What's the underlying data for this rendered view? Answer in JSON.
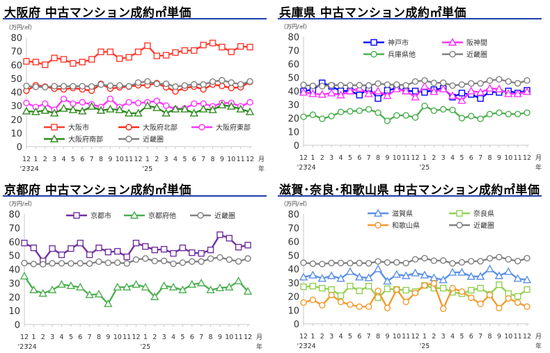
{
  "x_labels": [
    "12",
    "1",
    "2",
    "3",
    "4",
    "5",
    "6",
    "7",
    "8",
    "9",
    "10",
    "11",
    "12",
    "1",
    "2",
    "3",
    "4",
    "5",
    "6",
    "7",
    "8",
    "9",
    "10",
    "11",
    "12"
  ],
  "x_year_labels": {
    "0": "'23",
    "1": "'24",
    "13": "'25"
  },
  "x_unit_label": "月",
  "x_unit_label2": "年",
  "chart_data": [
    {
      "type": "line",
      "title": "大阪府 中古マンション成約㎡単価",
      "ylabel": "（万円/㎡）",
      "ylim": [
        0,
        80
      ],
      "yticks": [
        0,
        10,
        20,
        30,
        40,
        50,
        60,
        70,
        80
      ],
      "legend": "bottom",
      "series": [
        {
          "name": "大阪市",
          "color": "#ff3b2f",
          "marker": "square",
          "values": [
            62.5,
            62,
            60,
            65,
            64,
            61,
            62,
            64,
            69.5,
            69.5,
            64.5,
            65.5,
            69.5,
            74,
            66.5,
            67,
            69,
            70.5,
            70.5,
            74.5,
            76,
            73,
            69.5,
            73.5,
            73
          ]
        },
        {
          "name": "大阪府北部",
          "color": "#ff2a1a",
          "marker": "circle",
          "values": [
            41,
            45,
            44,
            42.5,
            42,
            43,
            42,
            41,
            46,
            42.5,
            43.5,
            44,
            45,
            45,
            46.5,
            43.5,
            40.5,
            43,
            44,
            42,
            45.5,
            44.5,
            43,
            43.5,
            47.5
          ]
        },
        {
          "name": "大阪府東部",
          "color": "#ff33ff",
          "marker": "circle",
          "values": [
            32,
            29,
            31.5,
            27,
            35,
            31.5,
            32.5,
            31,
            29,
            35,
            29,
            32.5,
            32,
            32.5,
            33.5,
            30,
            27.5,
            28,
            31.5,
            31.5,
            29.5,
            32,
            32,
            29.5,
            32.5
          ]
        },
        {
          "name": "大阪府南部",
          "color": "#2e8a1f",
          "marker": "triangle",
          "values": [
            26,
            25.5,
            26.5,
            24.5,
            28,
            27,
            26,
            29.5,
            26.5,
            27.5,
            27,
            24.5,
            24.5,
            30,
            28.5,
            24.5,
            27.5,
            27.5,
            24.5,
            27.5,
            27,
            30.5,
            29.5,
            27.5,
            25.5
          ]
        },
        {
          "name": "近畿圏",
          "color": "#808080",
          "marker": "circle",
          "values": [
            44.5,
            43.8,
            43.6,
            44.3,
            44.3,
            44.2,
            44.3,
            44.1,
            45.5,
            44.7,
            44.8,
            44.2,
            47,
            47.8,
            46,
            46.1,
            44,
            44.8,
            45.6,
            45.6,
            47.7,
            48.6,
            47,
            45.7,
            47.8
          ]
        }
      ]
    },
    {
      "type": "line",
      "title": "兵庫県 中古マンション成約㎡単価",
      "ylabel": "（万円/㎡）",
      "ylim": [
        0,
        80
      ],
      "yticks": [
        0,
        10,
        20,
        30,
        40,
        50,
        60,
        70,
        80
      ],
      "legend": "top",
      "series": [
        {
          "name": "神戸市",
          "color": "#0000ff",
          "marker": "square",
          "values": [
            40,
            41,
            46,
            43.5,
            40,
            40,
            37,
            42,
            34.5,
            40.5,
            42,
            40,
            40,
            39,
            41,
            42,
            35.5,
            38.5,
            37.5,
            34.5,
            39.5,
            39,
            40,
            38.5,
            40.5
          ]
        },
        {
          "name": "阪神間",
          "color": "#ff33ff",
          "marker": "triangle",
          "values": [
            39,
            38,
            37.5,
            38.5,
            37,
            40,
            42,
            38,
            40,
            36.5,
            41.5,
            40,
            35.5,
            43.5,
            39.5,
            41.5,
            36.5,
            33,
            40,
            39,
            42,
            41.5,
            38,
            38,
            39.5
          ]
        },
        {
          "name": "兵庫県他",
          "color": "#4caf50",
          "marker": "circle",
          "values": [
            21,
            22.5,
            19.5,
            21.5,
            24.5,
            25,
            25.5,
            26.5,
            24,
            18,
            22,
            22,
            20.5,
            29,
            25.5,
            26.5,
            26,
            20,
            21.5,
            19.5,
            23,
            24,
            23,
            23,
            24
          ]
        },
        {
          "name": "近畿圏",
          "color": "#808080",
          "marker": "circle",
          "values": [
            44.5,
            43.8,
            43.6,
            44.3,
            44.3,
            44.2,
            44.3,
            44.1,
            45.5,
            44.7,
            44.8,
            44.2,
            47,
            47.8,
            46,
            46.1,
            44,
            44.8,
            45.6,
            45.6,
            47.7,
            48.6,
            47,
            45.7,
            47.8
          ]
        }
      ]
    },
    {
      "type": "line",
      "title": "京都府 中古マンション成約㎡単価",
      "ylabel": "（万円/㎡）",
      "ylim": [
        0,
        80
      ],
      "yticks": [
        0,
        10,
        20,
        30,
        40,
        50,
        60,
        70,
        80
      ],
      "legend": "top",
      "series": [
        {
          "name": "京都市",
          "color": "#7030a0",
          "marker": "square",
          "values": [
            59,
            55.5,
            46,
            55,
            50.5,
            55,
            59,
            50.5,
            55.5,
            52.5,
            53,
            49,
            59,
            56.5,
            54,
            54.5,
            51.5,
            55.5,
            52,
            51.5,
            54,
            65,
            62.5,
            56,
            57.5
          ]
        },
        {
          "name": "京都府他",
          "color": "#4caf50",
          "marker": "triangle",
          "values": [
            35,
            25,
            22.5,
            25,
            29,
            28,
            27,
            21.5,
            22,
            15,
            27,
            27,
            29,
            27,
            20,
            28,
            27,
            25,
            29,
            30,
            25,
            26.5,
            27,
            31.5,
            24
          ]
        },
        {
          "name": "近畿圏",
          "color": "#808080",
          "marker": "circle",
          "values": [
            44.5,
            43.8,
            43.6,
            44.3,
            44.3,
            44.2,
            44.3,
            44.1,
            45.5,
            44.7,
            44.8,
            44.2,
            47,
            47.8,
            46,
            46.1,
            44,
            44.8,
            45.6,
            45.6,
            47.7,
            48.6,
            47,
            45.7,
            47.8
          ]
        }
      ]
    },
    {
      "type": "line",
      "title": "滋賀･奈良･和歌山県 中古マンション成約㎡単価",
      "ylabel": "（万円/㎡）",
      "ylim": [
        0,
        80
      ],
      "yticks": [
        0,
        10,
        20,
        30,
        40,
        50,
        60,
        70,
        80
      ],
      "legend": "top",
      "series": [
        {
          "name": "滋賀県",
          "color": "#5b8fe8",
          "marker": "triangle",
          "values": [
            34,
            35.5,
            33,
            35,
            33,
            38,
            34,
            33.5,
            40,
            31,
            36,
            35,
            37,
            35.5,
            33.5,
            32,
            37.5,
            37.5,
            34.5,
            34.5,
            40,
            35,
            38,
            33,
            32
          ]
        },
        {
          "name": "奈良県",
          "color": "#92d050",
          "marker": "square",
          "values": [
            27,
            27.5,
            26,
            25,
            20.5,
            27.5,
            24,
            27.5,
            19,
            25.5,
            25,
            24.5,
            23.5,
            28,
            26,
            26,
            23,
            22,
            24.5,
            26,
            21.5,
            28.5,
            22,
            20,
            25
          ]
        },
        {
          "name": "和歌山県",
          "color": "#f39a2b",
          "marker": "circle",
          "values": [
            15.5,
            17.5,
            13.5,
            21,
            16,
            14,
            12.5,
            12.5,
            24,
            11.5,
            25,
            16,
            22.5,
            28,
            29.5,
            11,
            26,
            23.5,
            19,
            14.5,
            21,
            11.5,
            18.5,
            15.5,
            12.5
          ]
        },
        {
          "name": "近畿圏",
          "color": "#808080",
          "marker": "circle",
          "values": [
            44.5,
            43.8,
            43.6,
            44.3,
            44.3,
            44.2,
            44.3,
            44.1,
            45.5,
            44.7,
            44.8,
            44.2,
            47,
            47.8,
            46,
            46.1,
            44,
            44.8,
            45.6,
            45.6,
            47.7,
            48.6,
            47,
            45.7,
            47.8
          ]
        }
      ]
    }
  ]
}
